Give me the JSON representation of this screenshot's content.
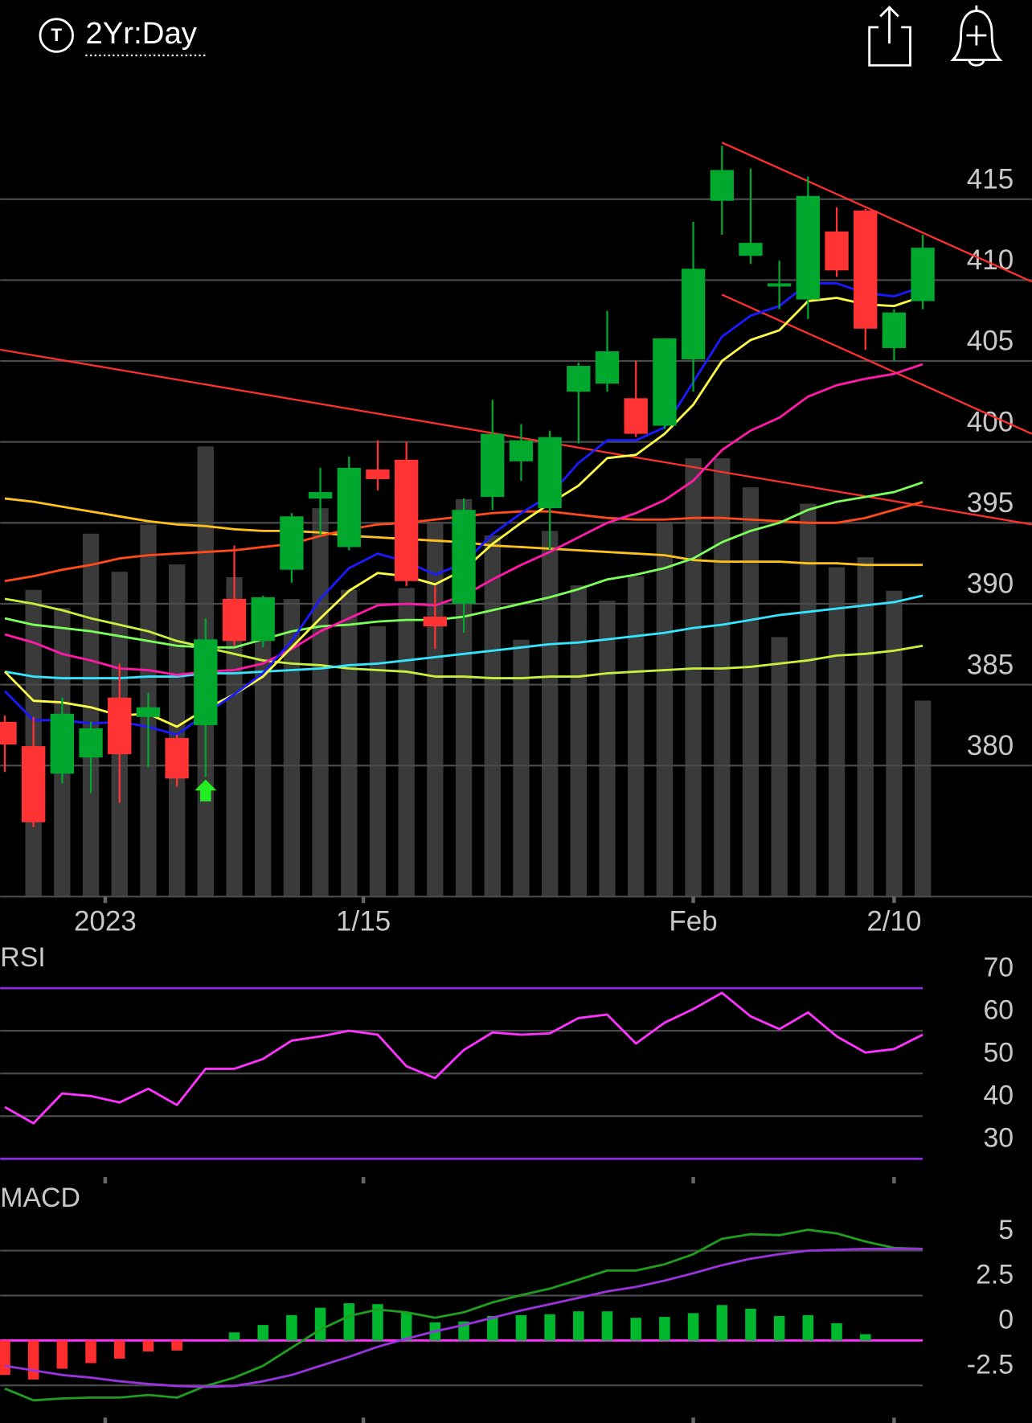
{
  "header": {
    "ticker_icon": "T",
    "timeframe": "2Yr:Day"
  },
  "chart_data": [
    {
      "type": "candlestick",
      "open": [
        382.7,
        381.2,
        379.5,
        380.5,
        384.2,
        383.0,
        381.7,
        382.5,
        390.3,
        387.7,
        392.1,
        396.5,
        393.5,
        398.3,
        398.9,
        389.2,
        390.0,
        396.6,
        398.8,
        395.9,
        403.1,
        403.6,
        402.7,
        401.0,
        405.1,
        414.9,
        411.5,
        409.6,
        408.8,
        413.0,
        414.3,
        405.8,
        408.7
      ],
      "high": [
        383.1,
        383.0,
        384.2,
        382.7,
        386.3,
        384.5,
        381.9,
        389.1,
        393.6,
        390.5,
        395.6,
        398.4,
        399.1,
        400.1,
        400.0,
        391.1,
        396.5,
        402.6,
        401.1,
        400.7,
        404.9,
        408.1,
        405.0,
        406.4,
        413.6,
        418.3,
        416.9,
        411.2,
        416.4,
        414.5,
        414.4,
        408.2,
        412.8
      ],
      "low": [
        379.6,
        376.2,
        378.9,
        378.3,
        377.7,
        379.9,
        378.7,
        379.3,
        387.4,
        387.3,
        391.3,
        394.2,
        393.3,
        397.0,
        391.1,
        387.2,
        388.2,
        395.8,
        397.6,
        393.3,
        399.9,
        403.1,
        400.3,
        400.8,
        403.1,
        412.8,
        411.0,
        408.2,
        407.6,
        410.2,
        405.7,
        405.0,
        408.2
      ],
      "close": [
        381.3,
        376.5,
        383.2,
        382.3,
        380.7,
        383.6,
        379.2,
        387.8,
        387.7,
        390.4,
        395.4,
        396.9,
        398.4,
        397.7,
        391.4,
        388.6,
        395.8,
        400.5,
        400.1,
        400.3,
        404.7,
        405.6,
        400.5,
        406.4,
        410.7,
        416.8,
        412.3,
        409.8,
        415.2,
        410.6,
        407.0,
        408.0,
        412.0
      ],
      "up_color": "#00a82d",
      "down_color": "#ff3333",
      "xlim": [
        -0.16,
        35.8
      ],
      "ylim": [
        371.9,
        421.7
      ],
      "yticks": [
        380,
        385,
        390,
        395,
        400,
        405,
        410,
        415
      ],
      "xticks": [
        {
          "value": 3.5,
          "label": "2023"
        },
        {
          "value": 12.5,
          "label": "1/15"
        },
        {
          "value": 24,
          "label": "Feb"
        },
        {
          "value": 31,
          "label": "2/10"
        }
      ],
      "grid": true,
      "volume": {
        "color": "#3a3a3a",
        "ylim": [
          0,
          888
        ],
        "values": [
          null,
          338,
          318,
          400,
          358,
          410,
          366,
          496,
          352,
          328,
          328,
          428,
          338,
          298,
          340,
          413,
          438,
          398,
          283,
          403,
          343,
          326,
          353,
          413,
          483,
          483,
          451,
          286,
          433,
          363,
          374,
          337,
          216
        ]
      },
      "overlays": [
        {
          "color": "#ffc21a",
          "values": [
            396.5,
            396.3,
            396.0,
            395.7,
            395.4,
            395.1,
            394.9,
            394.8,
            394.6,
            394.5,
            394.5,
            394.4,
            394.2,
            394.1,
            394.0,
            393.9,
            393.8,
            393.6,
            393.5,
            393.4,
            393.3,
            393.2,
            393.1,
            393.0,
            392.7,
            392.6,
            392.6,
            392.6,
            392.5,
            392.5,
            392.4,
            392.4,
            392.4
          ]
        },
        {
          "color": "#ff4a1a",
          "values": [
            391.4,
            391.7,
            392.1,
            392.4,
            392.8,
            393.0,
            393.1,
            393.2,
            393.3,
            393.5,
            393.7,
            394.2,
            394.6,
            394.9,
            395.0,
            395.2,
            395.4,
            395.6,
            395.7,
            395.7,
            395.5,
            395.3,
            395.2,
            395.2,
            395.3,
            395.3,
            395.2,
            395.1,
            395.0,
            395.0,
            395.3,
            395.8,
            396.3
          ]
        },
        {
          "color": "#c8f03c",
          "values": [
            390.3,
            390.0,
            389.6,
            389.1,
            388.7,
            388.3,
            387.7,
            387.3,
            386.9,
            386.5,
            386.3,
            386.2,
            386.0,
            385.9,
            385.8,
            385.5,
            385.5,
            385.4,
            385.4,
            385.5,
            385.5,
            385.7,
            385.8,
            385.9,
            386.0,
            386.0,
            386.1,
            386.3,
            386.5,
            386.8,
            386.9,
            387.1,
            387.4
          ]
        },
        {
          "color": "#33e5ff",
          "values": [
            385.8,
            385.5,
            385.4,
            385.4,
            385.4,
            385.5,
            385.5,
            385.7,
            385.7,
            385.8,
            385.9,
            386.0,
            386.2,
            386.3,
            386.5,
            386.7,
            386.9,
            387.1,
            387.3,
            387.5,
            387.6,
            387.8,
            388.0,
            388.2,
            388.5,
            388.7,
            389.0,
            389.3,
            389.5,
            389.7,
            389.9,
            390.1,
            390.5
          ]
        },
        {
          "color": "#7dff5a",
          "values": [
            389.1,
            388.7,
            388.5,
            388.3,
            388.0,
            387.7,
            387.4,
            387.3,
            387.3,
            387.8,
            388.3,
            388.6,
            388.7,
            388.9,
            389.0,
            389.0,
            389.2,
            389.6,
            390.0,
            390.4,
            390.9,
            391.5,
            391.8,
            392.2,
            392.8,
            393.8,
            394.5,
            395.0,
            395.8,
            396.3,
            396.6,
            396.9,
            397.5
          ]
        },
        {
          "color": "#ff1aa8",
          "values": [
            388.1,
            387.6,
            386.9,
            386.5,
            386.0,
            385.9,
            385.6,
            385.8,
            385.9,
            386.3,
            387.2,
            388.3,
            389.1,
            389.9,
            390.0,
            389.9,
            390.5,
            391.5,
            392.4,
            393.2,
            394.1,
            395.0,
            395.6,
            396.4,
            397.6,
            399.5,
            400.7,
            401.5,
            402.8,
            403.5,
            403.9,
            404.2,
            404.8
          ]
        },
        {
          "color": "#ffff44",
          "values": [
            385.8,
            384.0,
            383.9,
            383.6,
            383.1,
            383.2,
            382.4,
            383.5,
            384.4,
            385.5,
            387.3,
            389.1,
            390.8,
            391.9,
            391.7,
            391.2,
            392.1,
            393.7,
            395.0,
            396.2,
            397.3,
            399.0,
            399.2,
            400.5,
            402.3,
            405.0,
            406.3,
            406.9,
            408.7,
            408.9,
            408.5,
            408.4,
            409.0
          ]
        },
        {
          "color": "#1a1aff",
          "values": [
            384.6,
            382.8,
            382.8,
            382.6,
            382.7,
            382.4,
            381.9,
            383.2,
            384.4,
            385.7,
            387.7,
            390.3,
            392.2,
            393.1,
            392.6,
            391.8,
            392.5,
            394.3,
            395.6,
            396.7,
            398.7,
            400.1,
            400.1,
            400.9,
            403.7,
            406.5,
            407.8,
            408.4,
            409.8,
            409.8,
            409.2,
            409.0,
            409.6
          ]
        }
      ],
      "trendlines": [
        {
          "color": "#ff3030",
          "x": [
            -0.16,
            35.8
          ],
          "y": [
            405.7,
            394.9
          ]
        },
        {
          "color": "#ff3030",
          "x": [
            25,
            35.8
          ],
          "y": [
            418.5,
            409.9
          ]
        },
        {
          "color": "#ff3030",
          "x": [
            25,
            35.8
          ],
          "y": [
            409.1,
            400.5
          ]
        }
      ],
      "signals": [
        {
          "x": 7,
          "color": "#22ee22"
        }
      ]
    },
    {
      "type": "line",
      "title": "RSI",
      "color": "#ff33ff",
      "values": [
        42.1,
        38.3,
        45.3,
        44.7,
        43.2,
        46.4,
        42.6,
        51.1,
        51.1,
        53.4,
        57.7,
        58.7,
        60.0,
        59.1,
        51.7,
        48.9,
        55.5,
        59.6,
        59.1,
        59.4,
        63.0,
        63.8,
        57.0,
        61.9,
        65.1,
        68.9,
        63.4,
        60.4,
        64.3,
        58.7,
        54.9,
        55.7,
        59.1
      ],
      "xlim": [
        -0.16,
        35.8
      ],
      "ylim": [
        25.7,
        80.4
      ],
      "yticks": [
        30,
        40,
        50,
        60,
        70
      ],
      "bands": [
        30,
        70
      ],
      "band_color": "#8a2be2",
      "grid": true
    },
    {
      "type": "macd",
      "title": "MACD",
      "series": [
        {
          "color": "#1f9e1f",
          "values": [
            -2.68,
            -3.33,
            -3.23,
            -3.18,
            -3.18,
            -3.03,
            -3.18,
            -2.53,
            -2.07,
            -1.41,
            -0.4,
            0.61,
            1.36,
            1.72,
            1.57,
            1.26,
            1.57,
            2.12,
            2.53,
            2.88,
            3.38,
            3.89,
            3.89,
            4.24,
            4.8,
            5.66,
            5.91,
            5.86,
            6.16,
            5.96,
            5.51,
            5.15,
            5.1
          ]
        },
        {
          "color": "#9933dd",
          "values": [
            -1.41,
            -1.67,
            -1.92,
            -2.07,
            -2.27,
            -2.42,
            -2.53,
            -2.58,
            -2.53,
            -2.27,
            -1.92,
            -1.41,
            -0.91,
            -0.35,
            0.1,
            0.51,
            0.86,
            1.26,
            1.67,
            2.02,
            2.37,
            2.73,
            2.98,
            3.33,
            3.74,
            4.19,
            4.55,
            4.8,
            5.0,
            5.05,
            5.1,
            5.1,
            5.1
          ]
        }
      ],
      "histogram": {
        "up_color": "#00b82e",
        "down_color": "#ff2e2e",
        "values": [
          -1.92,
          -2.17,
          -1.57,
          -1.26,
          -1.01,
          -0.61,
          -0.56,
          0,
          0.45,
          0.86,
          1.41,
          1.82,
          2.07,
          2.02,
          1.57,
          1.01,
          1.06,
          1.36,
          1.41,
          1.46,
          1.62,
          1.62,
          1.26,
          1.31,
          1.52,
          1.97,
          1.77,
          1.36,
          1.41,
          0.96,
          0.35,
          0,
          0
        ]
      },
      "xlim": [
        -0.16,
        35.8
      ],
      "ylim": [
        -4.29,
        8.69
      ],
      "yticks": [
        -2.5,
        0,
        2.5,
        5
      ],
      "zero_color": "#ff33ff",
      "grid": true
    }
  ]
}
